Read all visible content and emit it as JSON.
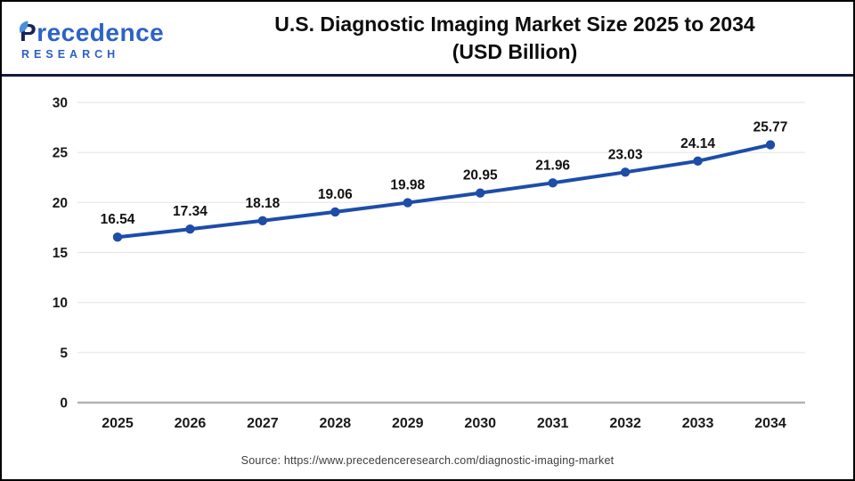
{
  "header": {
    "logo": {
      "word_first": "P",
      "word_rest": "recedence",
      "subword": "RESEARCH"
    },
    "title_line1": "U.S. Diagnostic Imaging Market Size 2025 to 2034",
    "title_line2": "(USD Billion)"
  },
  "footer": {
    "source": "Source: https://www.precedenceresearch.com/diagnostic-imaging-market"
  },
  "colors": {
    "series_line": "#1d4da8",
    "point_fill": "#1d4da8",
    "grid_line": "#e7e7e7",
    "axis_zero_line": "#b3b3b3",
    "tick_text": "#1a1a1a",
    "data_label_text": "#111111",
    "header_rule": "#141a3c",
    "logo_navy": "#17245a",
    "logo_blue": "#2c63c6",
    "leaf": "#4a8fd9"
  },
  "chart_data": {
    "type": "line",
    "title": "U.S. Diagnostic Imaging Market Size 2025 to 2034 (USD Billion)",
    "categories": [
      "2025",
      "2026",
      "2027",
      "2028",
      "2029",
      "2030",
      "2031",
      "2032",
      "2033",
      "2034"
    ],
    "values": [
      16.54,
      17.34,
      18.18,
      19.06,
      19.98,
      20.95,
      21.96,
      23.03,
      24.14,
      25.77
    ],
    "data_labels": [
      "16.54",
      "17.34",
      "18.18",
      "19.06",
      "19.98",
      "20.95",
      "21.96",
      "23.03",
      "24.14",
      "25.77"
    ],
    "xlabel": "",
    "ylabel": "",
    "ylim": [
      0,
      30
    ],
    "yticks": [
      0,
      5,
      10,
      15,
      20,
      25,
      30
    ],
    "grid": true,
    "legend": "none"
  }
}
